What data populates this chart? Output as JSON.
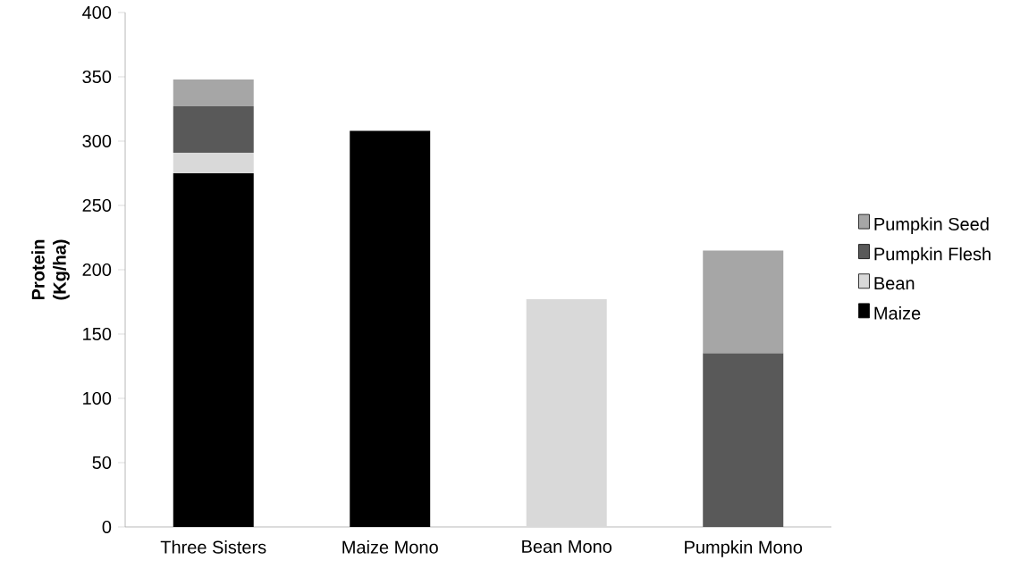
{
  "chart_data": {
    "type": "bar",
    "stacked": true,
    "ylabel": "Protein (Kg/ha)",
    "categories": [
      "Three Sisters",
      "Maize Mono",
      "Bean Mono",
      "Pumpkin Mono"
    ],
    "series": [
      {
        "name": "Maize",
        "color": "#000000",
        "values": [
          275,
          308,
          0,
          0
        ]
      },
      {
        "name": "Bean",
        "color": "#d9d9d9",
        "values": [
          16,
          0,
          177,
          0
        ]
      },
      {
        "name": "Pumpkin Flesh",
        "color": "#595959",
        "values": [
          36,
          0,
          0,
          135
        ]
      },
      {
        "name": "Pumpkin Seed",
        "color": "#a6a6a6",
        "values": [
          21,
          0,
          0,
          80
        ]
      }
    ],
    "ylim": [
      0,
      400
    ],
    "yticks": [
      0,
      50,
      100,
      150,
      200,
      250,
      300,
      350,
      400
    ],
    "grid": false,
    "legend": "right"
  }
}
